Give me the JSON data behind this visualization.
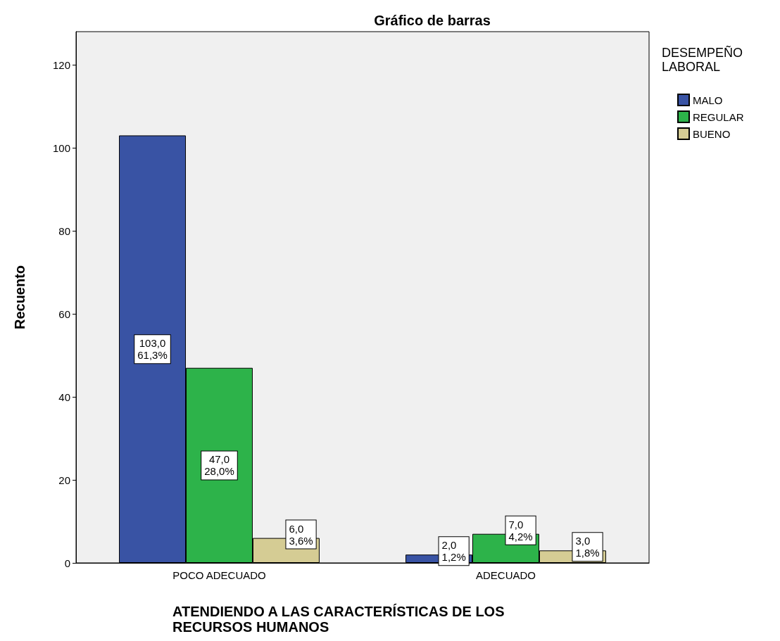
{
  "chart_data": {
    "type": "bar",
    "title": "Gráfico de barras",
    "xlabel": "ATENDIENDO A LAS CARACTERÍSTICAS DE LOS RECURSOS HUMANOS",
    "ylabel": "Recuento",
    "legend_title": "DESEMPEÑO LABORAL",
    "categories": [
      "POCO ADECUADO",
      "ADECUADO"
    ],
    "series": [
      {
        "name": "MALO",
        "color": "#3953a4",
        "values": [
          103,
          2
        ],
        "value_labels": [
          "103,0\n61,3%",
          "2,0\n1,2%"
        ]
      },
      {
        "name": "REGULAR",
        "color": "#2db34a",
        "values": [
          47,
          7
        ],
        "value_labels": [
          "47,0\n28,0%",
          "7,0\n4,2%"
        ]
      },
      {
        "name": "BUENO",
        "color": "#d5cc94",
        "values": [
          6,
          3
        ],
        "value_labels": [
          "6,0\n3,6%",
          "3,0\n1,8%"
        ]
      }
    ],
    "ylim": [
      0,
      128
    ],
    "yticks": [
      0,
      20,
      40,
      60,
      80,
      100,
      120
    ],
    "grid": false,
    "legend": "top right"
  }
}
